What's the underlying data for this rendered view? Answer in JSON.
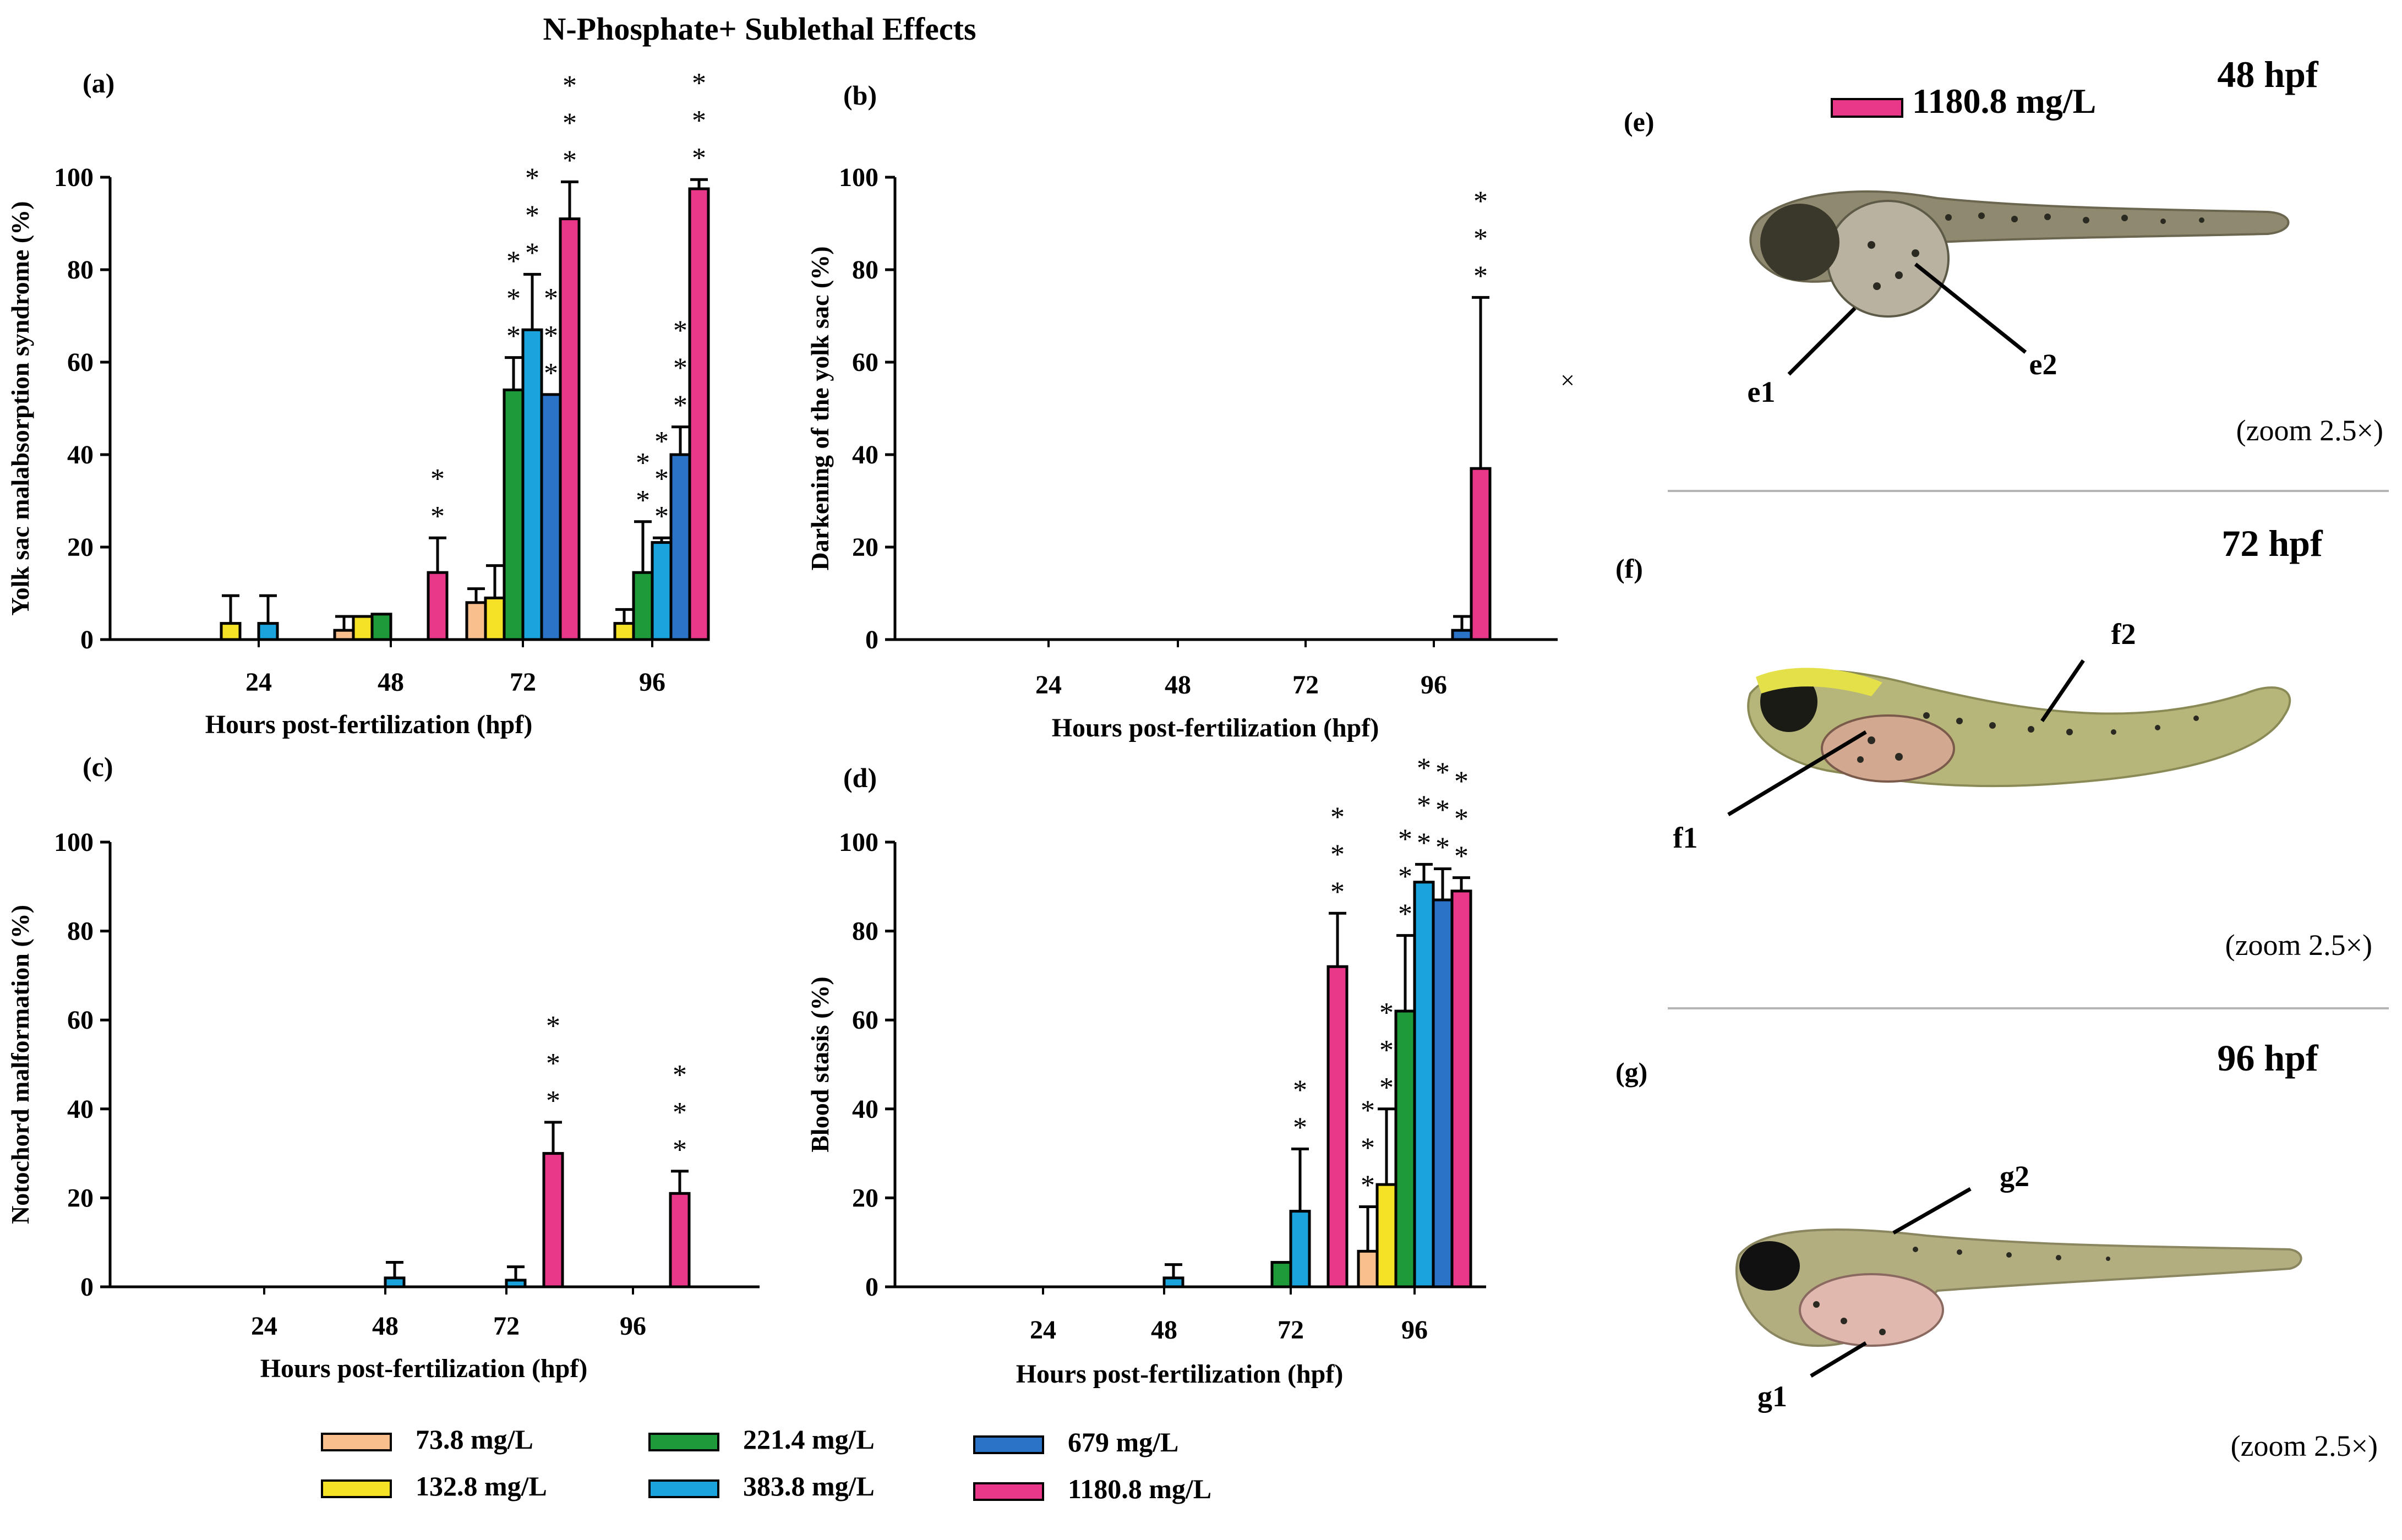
{
  "figure": {
    "title": "N-Phosphate+ Sublethal Effects",
    "concentrations": [
      {
        "label": "73.8 mg/L",
        "color": "#f9c08e"
      },
      {
        "label": "132.8 mg/L",
        "color": "#f5e227"
      },
      {
        "label": "221.4 mg/L",
        "color": "#1f9a3a"
      },
      {
        "label": "383.8 mg/L",
        "color": "#1aa3dc"
      },
      {
        "label": "679 mg/L",
        "color": "#2b73c6"
      },
      {
        "label": "1180.8 mg/L",
        "color": "#e9378a"
      }
    ],
    "stray_mark": "×"
  },
  "chart_data": [
    {
      "panel": "(a)",
      "type": "bar",
      "ylabel": "Yolk sac malabsorption syndrome (%)",
      "xlabel": "Hours post-fertilization (hpf)",
      "categories": [
        "24",
        "48",
        "72",
        "96"
      ],
      "ylim": [
        0,
        100
      ],
      "yticks": [
        0,
        20,
        40,
        60,
        80,
        100
      ],
      "series": [
        {
          "name": "73.8 mg/L",
          "values": [
            0,
            2,
            8,
            0
          ],
          "errors": [
            0,
            3,
            3,
            0
          ]
        },
        {
          "name": "132.8 mg/L",
          "values": [
            3.5,
            5,
            9,
            3.5
          ],
          "errors": [
            6,
            0,
            7,
            3
          ]
        },
        {
          "name": "221.4 mg/L",
          "values": [
            0,
            5.5,
            54,
            14.5
          ],
          "errors": [
            0,
            0,
            7,
            11
          ]
        },
        {
          "name": "383.8 mg/L",
          "values": [
            3.5,
            0,
            67,
            21
          ],
          "errors": [
            6,
            0,
            12,
            1
          ]
        },
        {
          "name": "679 mg/L",
          "values": [
            0,
            0,
            53,
            40
          ],
          "errors": [
            0,
            0,
            0,
            6
          ]
        },
        {
          "name": "1180.8 mg/L",
          "values": [
            0,
            14.5,
            91,
            97.5
          ],
          "errors": [
            0,
            7.5,
            8,
            2
          ]
        }
      ],
      "significance": [
        {
          "category": "48",
          "series": "1180.8 mg/L",
          "text": "**"
        },
        {
          "category": "72",
          "series": "221.4 mg/L",
          "text": "***"
        },
        {
          "category": "72",
          "series": "383.8 mg/L",
          "text": "***"
        },
        {
          "category": "72",
          "series": "679 mg/L",
          "text": "***"
        },
        {
          "category": "72",
          "series": "1180.8 mg/L",
          "text": "***"
        },
        {
          "category": "96",
          "series": "221.4 mg/L",
          "text": "**"
        },
        {
          "category": "96",
          "series": "383.8 mg/L",
          "text": "***"
        },
        {
          "category": "96",
          "series": "679 mg/L",
          "text": "***"
        },
        {
          "category": "96",
          "series": "1180.8 mg/L",
          "text": "***"
        }
      ]
    },
    {
      "panel": "(b)",
      "type": "bar",
      "ylabel": "Darkening of the yolk sac (%)",
      "xlabel": "Hours post-fertilization (hpf)",
      "categories": [
        "24",
        "48",
        "72",
        "96"
      ],
      "ylim": [
        0,
        100
      ],
      "yticks": [
        0,
        20,
        40,
        60,
        80,
        100
      ],
      "series": [
        {
          "name": "73.8 mg/L",
          "values": [
            0,
            0,
            0,
            0
          ],
          "errors": [
            0,
            0,
            0,
            0
          ]
        },
        {
          "name": "132.8 mg/L",
          "values": [
            0,
            0,
            0,
            0
          ],
          "errors": [
            0,
            0,
            0,
            0
          ]
        },
        {
          "name": "221.4 mg/L",
          "values": [
            0,
            0,
            0,
            0
          ],
          "errors": [
            0,
            0,
            0,
            0
          ]
        },
        {
          "name": "383.8 mg/L",
          "values": [
            0,
            0,
            0,
            0
          ],
          "errors": [
            0,
            0,
            0,
            0
          ]
        },
        {
          "name": "679 mg/L",
          "values": [
            0,
            0,
            0,
            2
          ],
          "errors": [
            0,
            0,
            0,
            3
          ]
        },
        {
          "name": "1180.8 mg/L",
          "values": [
            0,
            0,
            0,
            37
          ],
          "errors": [
            0,
            0,
            0,
            37
          ]
        }
      ],
      "significance": [
        {
          "category": "96",
          "series": "1180.8 mg/L",
          "text": "***"
        }
      ]
    },
    {
      "panel": "(c)",
      "type": "bar",
      "ylabel": "Notochord malformation (%)",
      "xlabel": "Hours post-fertilization (hpf)",
      "categories": [
        "24",
        "48",
        "72",
        "96"
      ],
      "ylim": [
        0,
        100
      ],
      "yticks": [
        0,
        20,
        40,
        60,
        80,
        100
      ],
      "series": [
        {
          "name": "73.8 mg/L",
          "values": [
            0,
            0,
            0,
            0
          ],
          "errors": [
            0,
            0,
            0,
            0
          ]
        },
        {
          "name": "132.8 mg/L",
          "values": [
            0,
            0,
            0,
            0
          ],
          "errors": [
            0,
            0,
            0,
            0
          ]
        },
        {
          "name": "221.4 mg/L",
          "values": [
            0,
            0,
            0,
            0
          ],
          "errors": [
            0,
            0,
            0,
            0
          ]
        },
        {
          "name": "383.8 mg/L",
          "values": [
            0,
            2,
            1.5,
            0
          ],
          "errors": [
            0,
            3.5,
            3,
            0
          ]
        },
        {
          "name": "679 mg/L",
          "values": [
            0,
            0,
            0,
            0
          ],
          "errors": [
            0,
            0,
            0,
            0
          ]
        },
        {
          "name": "1180.8 mg/L",
          "values": [
            0,
            0,
            30,
            21
          ],
          "errors": [
            0,
            0,
            7,
            5
          ]
        }
      ],
      "significance": [
        {
          "category": "72",
          "series": "1180.8 mg/L",
          "text": "***"
        },
        {
          "category": "96",
          "series": "1180.8 mg/L",
          "text": "***"
        }
      ]
    },
    {
      "panel": "(d)",
      "type": "bar",
      "ylabel": "Blood stasis (%)",
      "xlabel": "Hours post-fertilization (hpf)",
      "categories": [
        "24",
        "48",
        "72",
        "96"
      ],
      "ylim": [
        0,
        100
      ],
      "yticks": [
        0,
        20,
        40,
        60,
        80,
        100
      ],
      "series": [
        {
          "name": "73.8 mg/L",
          "values": [
            0,
            0,
            0,
            8
          ],
          "errors": [
            0,
            0,
            0,
            10
          ]
        },
        {
          "name": "132.8 mg/L",
          "values": [
            0,
            0,
            0,
            23
          ],
          "errors": [
            0,
            0,
            0,
            17
          ]
        },
        {
          "name": "221.4 mg/L",
          "values": [
            0,
            0,
            5.5,
            62
          ],
          "errors": [
            0,
            0,
            0,
            17
          ]
        },
        {
          "name": "383.8 mg/L",
          "values": [
            0,
            2,
            17,
            91
          ],
          "errors": [
            0,
            3,
            14,
            4
          ]
        },
        {
          "name": "679 mg/L",
          "values": [
            0,
            0,
            0,
            87
          ],
          "errors": [
            0,
            0,
            0,
            7
          ]
        },
        {
          "name": "1180.8 mg/L",
          "values": [
            0,
            0,
            72,
            89
          ],
          "errors": [
            0,
            0,
            12,
            3
          ]
        }
      ],
      "significance": [
        {
          "category": "72",
          "series": "383.8 mg/L",
          "text": "**"
        },
        {
          "category": "72",
          "series": "1180.8 mg/L",
          "text": "***"
        },
        {
          "category": "96",
          "series": "73.8 mg/L",
          "text": "***"
        },
        {
          "category": "96",
          "series": "132.8 mg/L",
          "text": "***"
        },
        {
          "category": "96",
          "series": "221.4 mg/L",
          "text": "***"
        },
        {
          "category": "96",
          "series": "383.8 mg/L",
          "text": "***"
        },
        {
          "category": "96",
          "series": "679 mg/L",
          "text": "***"
        },
        {
          "category": "96",
          "series": "1180.8 mg/L",
          "text": "***"
        }
      ]
    }
  ],
  "images": {
    "legend_label": "1180.8 mg/L",
    "panels": [
      {
        "panel": "(e)",
        "stage": "48 hpf",
        "zoom": "(zoom 2.5×)",
        "markers": [
          "e1",
          "e2"
        ],
        "body_color": "#8f8a6f"
      },
      {
        "panel": "(f)",
        "stage": "72 hpf",
        "zoom": "(zoom 2.5×)",
        "markers": [
          "f1",
          "f2"
        ],
        "body_color": "#b7b67a"
      },
      {
        "panel": "(g)",
        "stage": "96 hpf",
        "zoom": "(zoom 2.5×)",
        "markers": [
          "g1",
          "g2"
        ],
        "body_color": "#b2ae80"
      }
    ]
  }
}
